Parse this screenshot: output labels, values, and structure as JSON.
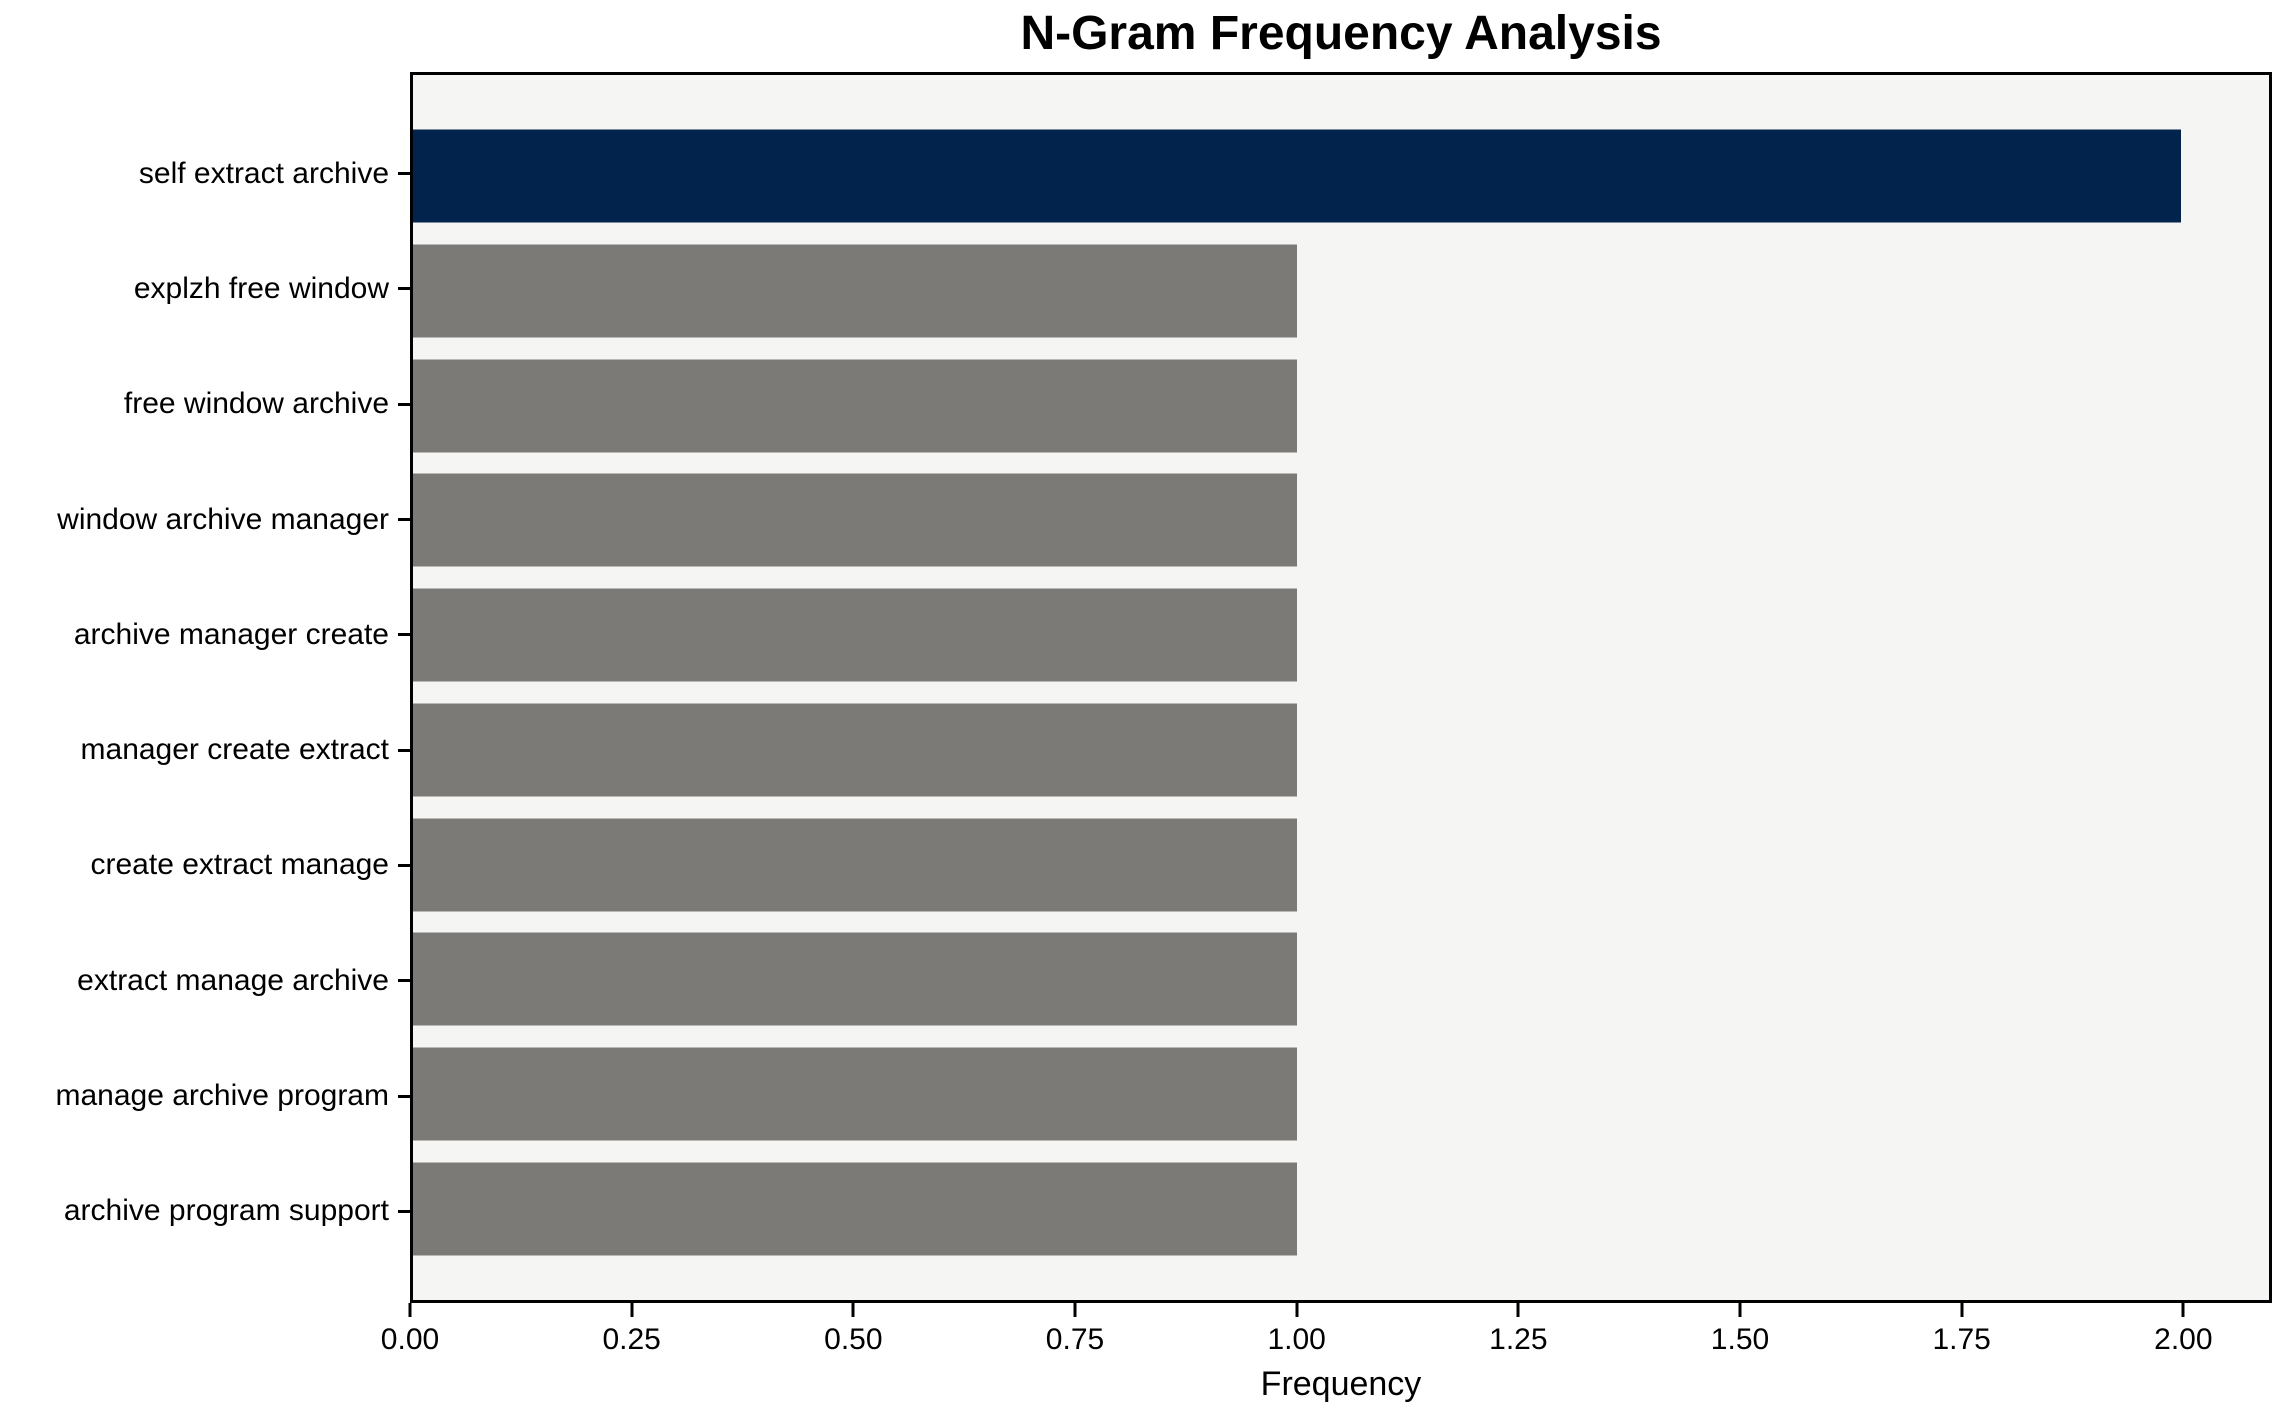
{
  "chart_data": {
    "type": "bar",
    "orientation": "horizontal",
    "title": "N-Gram Frequency Analysis",
    "xlabel": "Frequency",
    "ylabel": "",
    "categories": [
      "self extract archive",
      "explzh free window",
      "free window archive",
      "window archive manager",
      "archive manager create",
      "manager create extract",
      "create extract manage",
      "extract manage archive",
      "manage archive program",
      "archive program support"
    ],
    "values": [
      2,
      1,
      1,
      1,
      1,
      1,
      1,
      1,
      1,
      1
    ],
    "highlight_index": 0,
    "xlim": [
      0,
      2.1
    ],
    "xticks": {
      "values": [
        0,
        0.25,
        0.5,
        0.75,
        1.0,
        1.25,
        1.5,
        1.75,
        2.0
      ],
      "labels": [
        "0.00",
        "0.25",
        "0.50",
        "0.75",
        "1.00",
        "1.25",
        "1.50",
        "1.75",
        "2.00"
      ]
    },
    "grid": false,
    "legend": null,
    "bar_height_fraction": 0.8,
    "colors": {
      "highlight_bar": "#02234c",
      "default_bar": "#7b7a77",
      "plot_background": "#f5f5f4",
      "figure_background": "#ffffff",
      "axis_frame": "#000000",
      "text": "#000000"
    }
  }
}
